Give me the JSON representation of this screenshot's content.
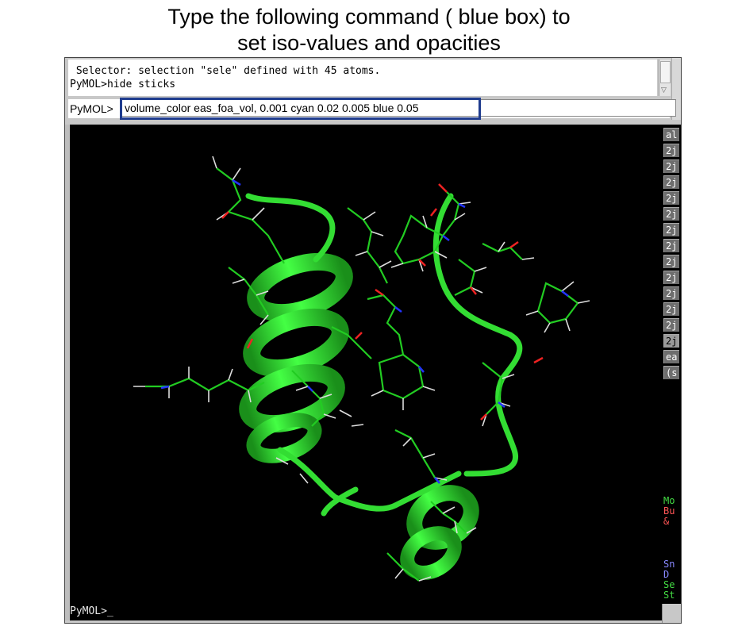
{
  "caption": {
    "line1": "Type the following command ( blue box) to",
    "line2": "set iso-values and opacities"
  },
  "log": {
    "partial_line": " Selector: selection \"sele\" defined with 45 atoms.",
    "line1": " Selector: selection \"sele\" defined with 45 atoms.",
    "line2": "PyMOL>hide sticks"
  },
  "command": {
    "prompt": "PyMOL>",
    "value": "volume_color eas_foa_vol, 0.001 cyan 0.02 0.005 blue 0.05"
  },
  "viewer": {
    "prompt": "PyMOL>_"
  },
  "panel": {
    "buttons": [
      "al",
      "2j",
      "2j",
      "2j",
      "2j",
      "2j",
      "2j",
      "2j",
      "2j",
      "2j",
      "2j",
      "2j",
      "2j",
      "2j",
      "ea",
      "(s"
    ],
    "status_top": [
      {
        "text": "Mo",
        "color": "#44dd44"
      },
      {
        "text": "Bu",
        "color": "#ff5555"
      },
      {
        "text": " &",
        "color": "#ff5555"
      }
    ],
    "status_bottom": [
      {
        "text": "Sn",
        "color": "#8888ff"
      },
      {
        "text": " D",
        "color": "#8888ff"
      },
      {
        "text": "Se",
        "color": "#44dd44"
      },
      {
        "text": "St",
        "color": "#44dd44"
      }
    ]
  },
  "colors": {
    "highlight_box": "#1f3c8e",
    "ribbon": "#33dd33",
    "carbon": "#22cc22",
    "hydrogen": "#dddddd",
    "nitrogen": "#2233ff",
    "oxygen": "#ee2222",
    "background": "#000000"
  }
}
